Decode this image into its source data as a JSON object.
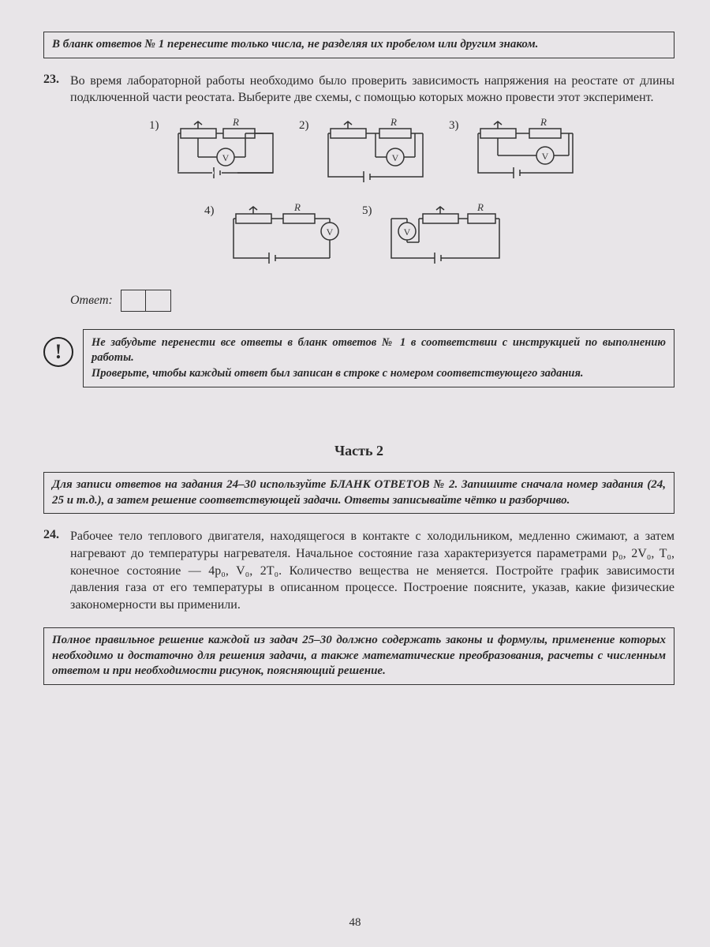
{
  "box1": "В бланк ответов № 1 перенесите только числа, не разделяя их пробелом или другим знаком.",
  "task23": {
    "num": "23.",
    "text": "Во время лабораторной работы необходимо было проверить зависимость напряжения на реостате от длины подключенной части реостата. Выберите две схемы, с помощью которых можно провести этот эксперимент.",
    "labels": [
      "1)",
      "2)",
      "3)",
      "4)",
      "5)"
    ],
    "R": "R",
    "V": "V"
  },
  "answer_label": "Ответ:",
  "reminder": "Не забудьте перенести все ответы в бланк ответов № 1 в соответствии с инструкцией по выполнению работы.\nПроверьте, чтобы каждый ответ был записан в строке с номером соответствующего задания.",
  "part2_title": "Часть 2",
  "box2": "Для записи ответов на задания 24–30 используйте БЛАНК ОТВЕТОВ № 2. Запишите сначала номер задания (24, 25 и т.д.), а затем решение соответствующей задачи. Ответы записывайте чётко и разборчиво.",
  "task24": {
    "num": "24.",
    "text": "Рабочее тело теплового двигателя, находящегося в контакте с холодильником, медленно сжимают, а затем нагревают до температуры нагревателя. Начальное состояние газа характеризуется параметрами p₀, 2V₀, T₀, конечное состояние — 4p₀, V₀, 2T₀. Количество вещества не меняется. Постройте график зависимости давления газа от его температуры в описанном процессе. Построение поясните, указав, какие физические закономерности вы применили."
  },
  "box3": "Полное правильное решение каждой из задач 25–30 должно содержать законы и формулы, применение которых необходимо и достаточно для решения задачи, а также математические преобразования, расчеты с численным ответом и при необходимости рисунок, поясняющий решение.",
  "page_num": "48",
  "colors": {
    "stroke": "#333333",
    "bg": "#e8e5e8"
  }
}
